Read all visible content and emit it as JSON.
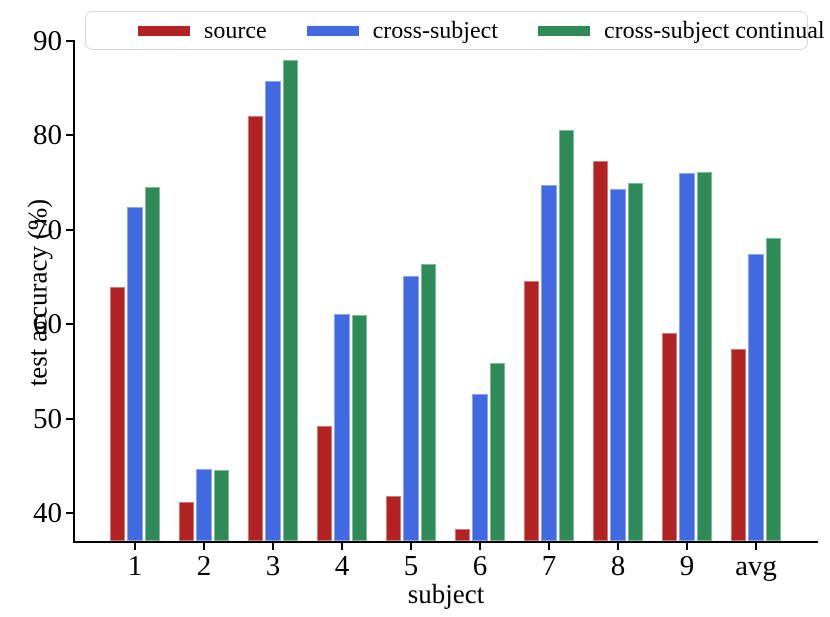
{
  "figure": {
    "background": "#ffffff",
    "text_color": "#000000",
    "axis_color": "#000000"
  },
  "chart_data": {
    "type": "bar",
    "title": "",
    "xlabel": "subject",
    "ylabel": "test accuracy (%)",
    "categories": [
      "1",
      "2",
      "3",
      "4",
      "5",
      "6",
      "7",
      "8",
      "9",
      "avg"
    ],
    "series": [
      {
        "name": "source",
        "color": "#b22222",
        "values": [
          63.9,
          41.2,
          82.0,
          49.2,
          41.8,
          38.3,
          64.5,
          77.2,
          59.0,
          57.4
        ]
      },
      {
        "name": "cross-subject",
        "color": "#4169e1",
        "values": [
          72.4,
          44.7,
          85.7,
          61.1,
          65.1,
          52.6,
          74.7,
          74.3,
          76.0,
          67.4
        ]
      },
      {
        "name": "cross-subject continual",
        "color": "#2e8b57",
        "values": [
          74.5,
          44.5,
          87.9,
          61.0,
          66.4,
          55.9,
          80.5,
          74.9,
          76.1,
          69.1
        ]
      }
    ],
    "ylim": [
      36.9,
      90
    ],
    "yticks": [
      40,
      50,
      60,
      70,
      80,
      90
    ],
    "legend_position": "top",
    "grid": false
  }
}
